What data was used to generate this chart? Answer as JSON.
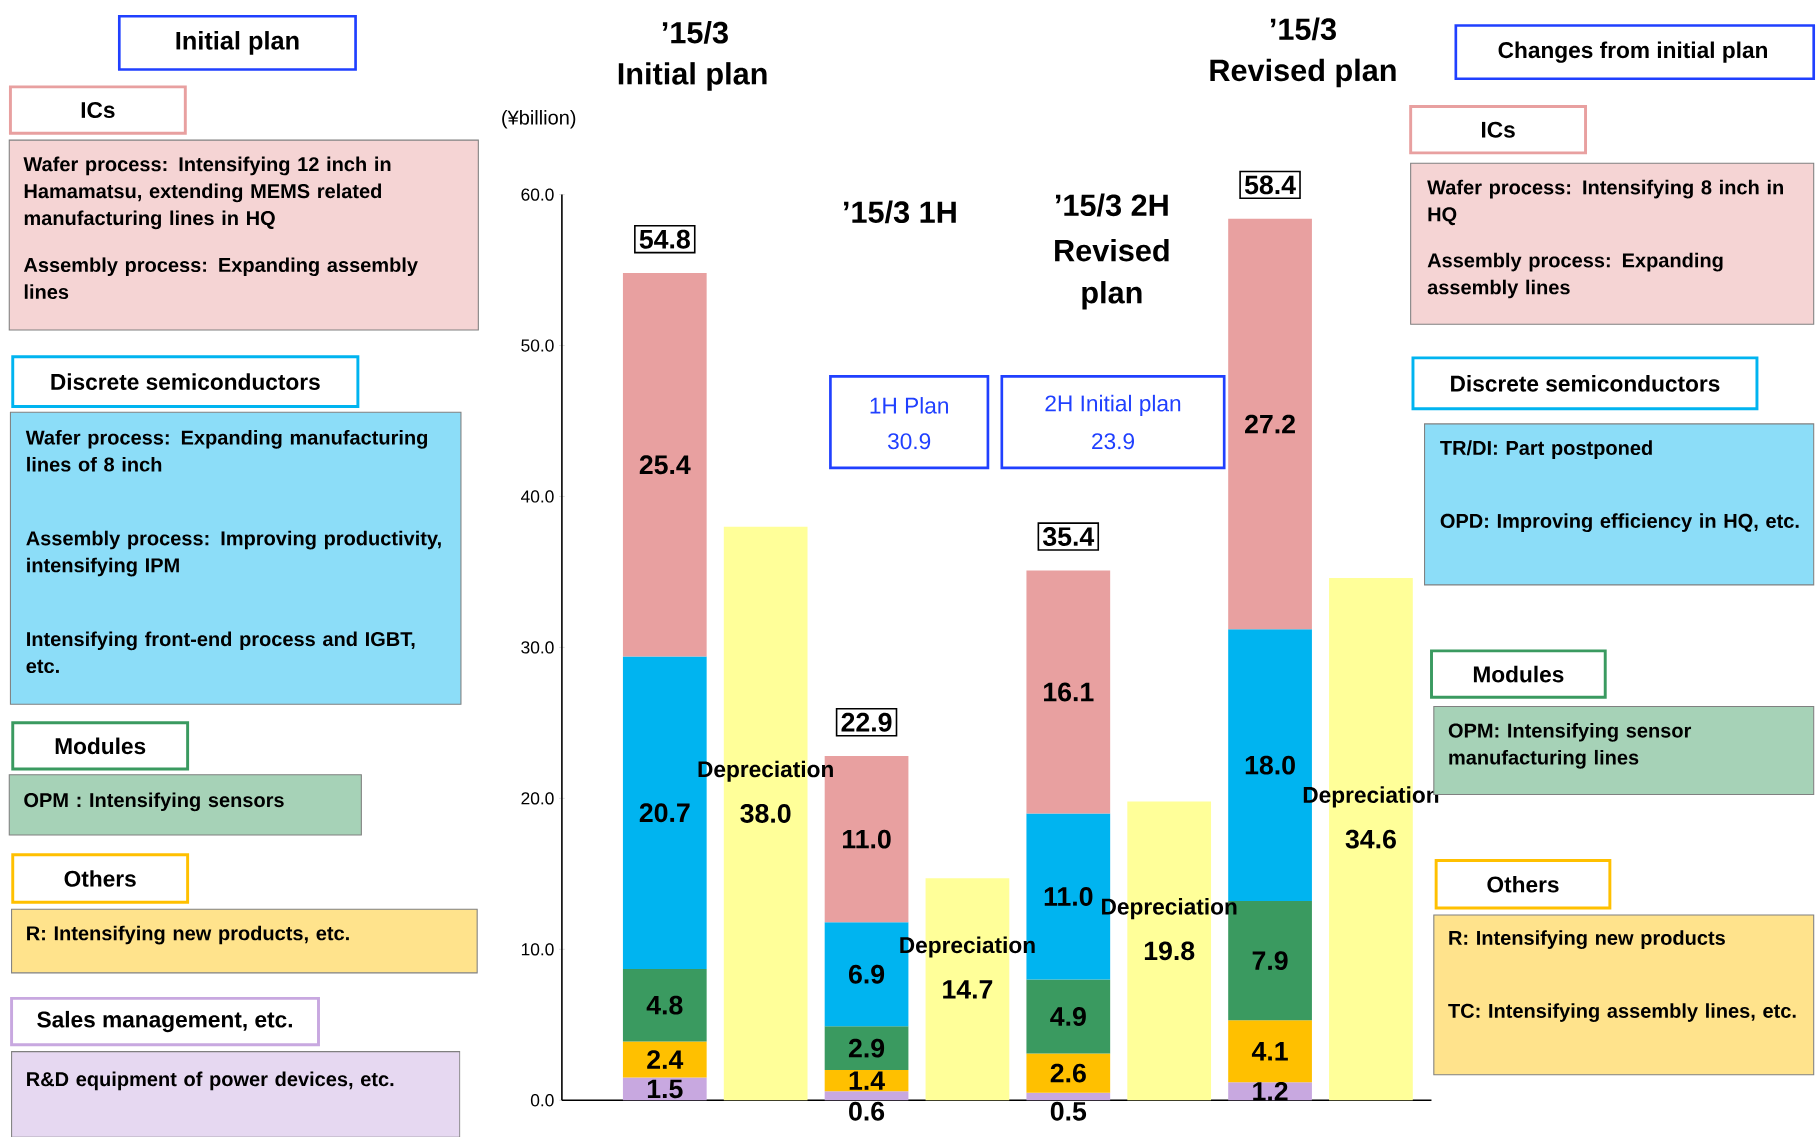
{
  "chart_data": {
    "type": "bar",
    "stacked": true,
    "legend": "left",
    "tick_labels": "y",
    "ylabel": "(¥billion)",
    "categories": [
      null,
      null,
      null,
      null,
      null,
      null,
      null,
      null
    ],
    "ylim": [
      0,
      60
    ],
    "yticks": [
      {
        "value": 0,
        "label": "0.0"
      },
      {
        "value": 10,
        "label": "10.0"
      },
      {
        "value": 20,
        "label": "20.0"
      },
      {
        "value": 30,
        "label": "30.0"
      },
      {
        "value": 40,
        "label": "40.0"
      },
      {
        "value": 50,
        "label": "50.0"
      },
      {
        "value": 60,
        "label": "60.0"
      }
    ],
    "series": [
      {
        "name": "Sales management, etc.",
        "color": "#c8a8e0",
        "values": [
          1.5,
          null,
          0.6,
          null,
          0.5,
          null,
          1.2,
          null
        ],
        "value_labels": [
          "1.5",
          null,
          "0.6",
          null,
          "0.5",
          null,
          "1.2",
          null
        ]
      },
      {
        "name": "Others",
        "color": "#ffc000",
        "values": [
          2.4,
          null,
          1.4,
          null,
          2.6,
          null,
          4.1,
          null
        ],
        "value_labels": [
          "2.4",
          null,
          "1.4",
          null,
          "2.6",
          null,
          "4.1",
          null
        ]
      },
      {
        "name": "Modules",
        "color": "#3a9a60",
        "values": [
          4.8,
          null,
          2.9,
          null,
          4.9,
          null,
          7.9,
          null
        ],
        "value_labels": [
          "4.8",
          null,
          "2.9",
          null,
          "4.9",
          null,
          "7.9",
          null
        ]
      },
      {
        "name": "Discrete semiconductors",
        "color": "#00b4f0",
        "values": [
          20.7,
          null,
          6.9,
          null,
          11.0,
          null,
          18.0,
          null
        ],
        "value_labels": [
          "20.7",
          null,
          "6.9",
          null,
          "11.0",
          null,
          "18.0",
          null
        ]
      },
      {
        "name": "ICs",
        "color": "#e8a0a0",
        "values": [
          25.4,
          null,
          11.0,
          null,
          16.1,
          null,
          27.2,
          null
        ],
        "value_labels": [
          "25.4",
          null,
          "11.0",
          null,
          "16.1",
          null,
          "27.2",
          null
        ]
      },
      {
        "name": "Depreciation",
        "color": "#ffff99",
        "values": [
          null,
          38.0,
          null,
          14.7,
          null,
          19.8,
          null,
          34.6
        ],
        "value_labels": [
          null,
          "38.0",
          null,
          "14.7",
          null,
          "19.8",
          null,
          "34.6"
        ]
      }
    ],
    "totals": [
      "54.8",
      null,
      "22.9",
      null,
      "35.4",
      null,
      "58.4",
      null
    ],
    "annotations": [
      "Initial plan",
      "Wafer process: Intensifying 12 inch in Hamamatsu, extending MEMS related manufacturing lines in HQ",
      "Assembly process: Expanding assembly lines",
      "Wafer process: Expanding manufacturing lines of 8 inch",
      "Assembly process: Improving productivity, intensifying IPM",
      "Intensifying front-end process and IGBT, etc.",
      "OPM : Intensifying sensors",
      "R: Intensifying new  products, etc.",
      "R&D equipment of power devices, etc.",
      "Changes from initial plan",
      "Wafer process: Intensifying 8 inch in HQ",
      "Assembly process: Expanding assembly lines",
      "TR/DI: Part postponed",
      "OPD: Improving efficiency in HQ, etc.",
      "OPM: Intensifying sensor manufacturing lines",
      "R: Intensifying new products",
      "TC: Intensifying assembly lines, etc.",
      "’15/3",
      "Initial plan",
      "’15/3 1H",
      "’15/3 2H",
      "Revised",
      "plan",
      "’15/3",
      "Revised plan",
      "1H Plan",
      "30.9",
      "2H Initial plan",
      "23.9"
    ]
  }
}
